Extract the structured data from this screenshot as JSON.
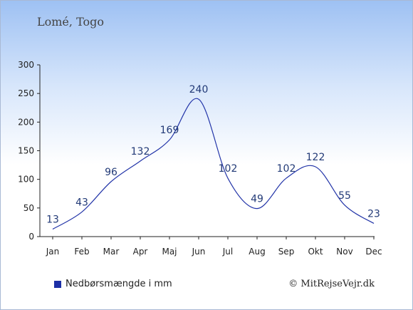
{
  "chart_data": {
    "type": "line",
    "title": "Lomé, Togo",
    "categories": [
      "Jan",
      "Feb",
      "Mar",
      "Apr",
      "Maj",
      "Jun",
      "Jul",
      "Aug",
      "Sep",
      "Okt",
      "Nov",
      "Dec"
    ],
    "series": [
      {
        "name": "Nedbørsmængde i mm",
        "values": [
          13,
          43,
          96,
          132,
          169,
          240,
          102,
          49,
          102,
          122,
          55,
          23
        ]
      }
    ],
    "yticks": [
      0,
      50,
      100,
      150,
      200,
      250,
      300
    ],
    "ylim": [
      0,
      300
    ],
    "legend_position": "bottom-left",
    "grid": false,
    "colors": {
      "line": "#2234a8",
      "swatch": "#1c2fa6",
      "labels": "#223a77"
    }
  },
  "footer": {
    "copyright": "© MitRejseVejr.dk"
  }
}
